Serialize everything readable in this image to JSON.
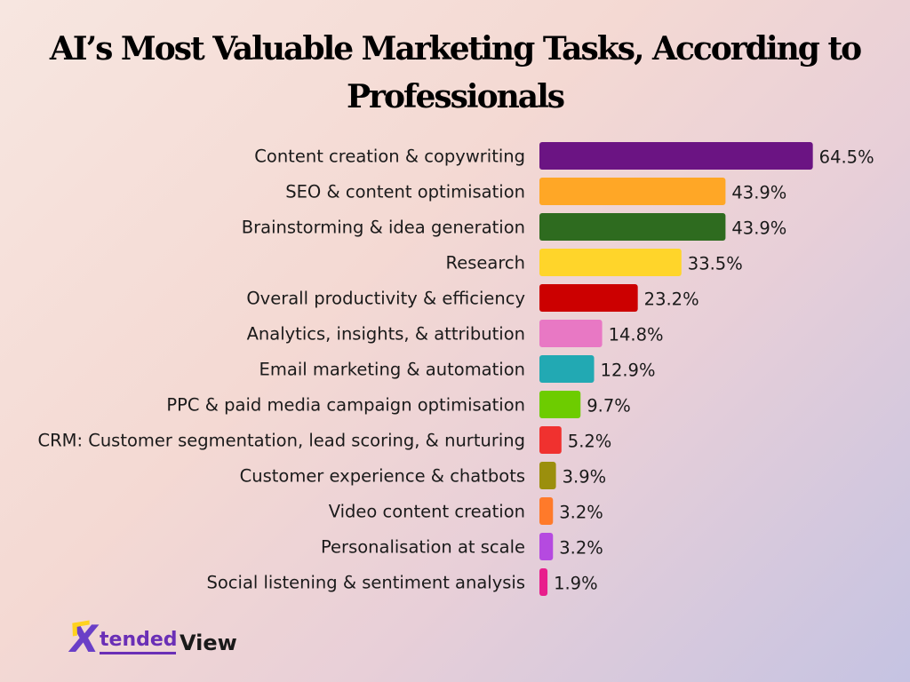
{
  "title_line1": "AI’s Most Valuable Marketing Tasks, According to",
  "title_line2": "Professionals",
  "logo": {
    "mark": "X",
    "word1": "tended",
    "word2": "View"
  },
  "chart_data": {
    "type": "bar",
    "orientation": "horizontal",
    "categories": [
      "Content creation & copywriting",
      "SEO & content optimisation",
      "Brainstorming & idea generation",
      "Research",
      "Overall productivity & efficiency",
      "Analytics, insights, & attribution",
      "Email marketing & automation",
      "PPC & paid media campaign optimisation",
      "CRM: Customer segmentation, lead scoring, & nurturing",
      "Customer experience & chatbots",
      "Video content creation",
      "Personalisation at scale",
      "Social listening & sentiment analysis"
    ],
    "values": [
      64.5,
      43.9,
      43.9,
      33.5,
      23.2,
      14.8,
      12.9,
      9.7,
      5.2,
      3.9,
      3.2,
      3.2,
      1.9
    ],
    "value_labels": [
      "64.5%",
      "43.9%",
      "43.9%",
      "33.5%",
      "23.2%",
      "14.8%",
      "12.9%",
      "9.7%",
      "5.2%",
      "3.9%",
      "3.2%",
      "3.2%",
      "1.9%"
    ],
    "colors": [
      "#6b1483",
      "#ffa726",
      "#2e6b1f",
      "#ffd52a",
      "#cc0000",
      "#e878c4",
      "#22a9b3",
      "#6dcc00",
      "#f0312f",
      "#9b8f0d",
      "#ff7a2a",
      "#b54ae0",
      "#e81e8c"
    ],
    "xlabel": "",
    "ylabel": "",
    "grid": false,
    "legend": "none"
  }
}
